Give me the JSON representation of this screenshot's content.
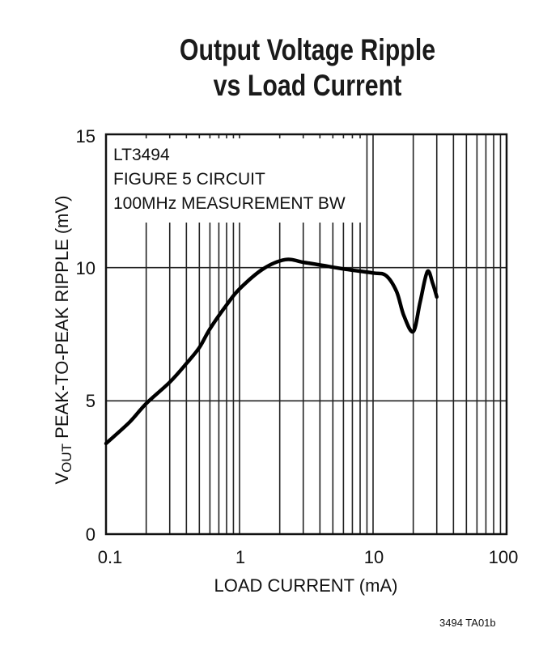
{
  "title_line1": "Output Voltage Ripple",
  "title_line2": "vs Load Current",
  "annotation": {
    "line1": "LT3494",
    "line2": "FIGURE 5 CIRCUIT",
    "line3": "100MHz MEASUREMENT BW"
  },
  "axes": {
    "xlabel": "LOAD CURRENT (mA)",
    "ylabel_prefix": "V",
    "ylabel_subscript": "OUT",
    "ylabel_rest": " PEAK-TO-PEAK RIPPLE (mV)",
    "x_ticks": [
      "0.1",
      "1",
      "10",
      "100"
    ],
    "y_ticks": [
      "0",
      "5",
      "10",
      "15"
    ]
  },
  "footer": "3494 TA01b",
  "chart_data": {
    "type": "line",
    "title": "Output Voltage Ripple vs Load Current",
    "xlabel": "LOAD CURRENT (mA)",
    "ylabel": "VOUT PEAK-TO-PEAK RIPPLE (mV)",
    "xscale": "log",
    "xlim": [
      0.1,
      100
    ],
    "ylim": [
      0,
      15
    ],
    "x_ticks": [
      0.1,
      1,
      10,
      100
    ],
    "y_ticks": [
      0,
      5,
      10,
      15
    ],
    "grid": true,
    "annotations": [
      "LT3494",
      "FIGURE 5 CIRCUIT",
      "100MHz MEASUREMENT BW"
    ],
    "series": [
      {
        "name": "LT3494",
        "x": [
          0.1,
          0.15,
          0.2,
          0.3,
          0.4,
          0.5,
          0.6,
          0.8,
          1.0,
          1.5,
          2.2,
          3.0,
          4.0,
          6.0,
          10.0,
          12.5,
          15.0,
          17.0,
          20.0,
          22.5,
          25.5,
          28.0,
          30.0
        ],
        "y": [
          3.4,
          4.2,
          4.9,
          5.7,
          6.4,
          7.0,
          7.7,
          8.6,
          9.2,
          9.95,
          10.3,
          10.2,
          10.1,
          9.95,
          9.8,
          9.7,
          9.1,
          8.2,
          7.6,
          8.7,
          9.85,
          9.4,
          8.9
        ]
      }
    ]
  }
}
